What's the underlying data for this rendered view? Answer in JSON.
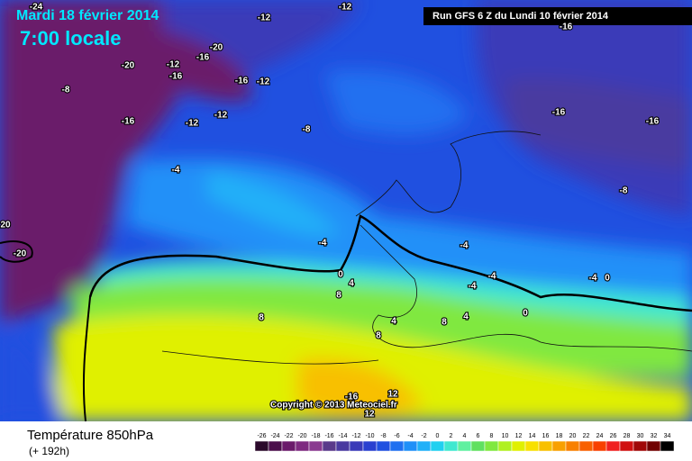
{
  "header": {
    "date": "Mardi 18 février 2014",
    "time": "7:00 locale",
    "run": "Run GFS 6 Z du Lundi 10 février 2014"
  },
  "copyright": "Copyright © 2013 Meteociel.fr",
  "footer": {
    "title": "Température 850hPa",
    "lead": "(+ 192h)"
  },
  "map_labels": [
    -24,
    -12,
    -12,
    -16,
    -20,
    -16,
    -12,
    -20,
    -16,
    -16,
    -12,
    -8,
    -16,
    -12,
    -12,
    -8,
    -16,
    -16,
    -4,
    -8,
    20,
    -20,
    -4,
    -4,
    0,
    4,
    -4,
    -4,
    -4,
    0,
    8,
    8,
    4,
    8,
    4,
    0,
    8,
    -16,
    12,
    12
  ],
  "colorbar": {
    "ticks": [
      -26,
      -24,
      -22,
      -20,
      -18,
      -16,
      -14,
      -12,
      -10,
      -8,
      -6,
      -4,
      -2,
      0,
      2,
      4,
      6,
      8,
      10,
      12,
      14,
      16,
      18,
      20,
      22,
      24,
      26,
      28,
      30,
      32,
      34
    ],
    "colors": [
      "#2b0a2b",
      "#4b0f4b",
      "#6a1a6a",
      "#7e2a80",
      "#8a3a90",
      "#5a3a8a",
      "#4a3aa0",
      "#3a3ab8",
      "#2a40d0",
      "#2050e0",
      "#2070f0",
      "#2090f8",
      "#20b0f8",
      "#20d0f0",
      "#40e8d0",
      "#60f0a0",
      "#60e060",
      "#80e840",
      "#b0f020",
      "#e0f000",
      "#f8e000",
      "#f8c000",
      "#f8a000",
      "#f88000",
      "#f86000",
      "#f84000",
      "#f02020",
      "#d01010",
      "#a00808",
      "#700000",
      "#000000"
    ]
  }
}
